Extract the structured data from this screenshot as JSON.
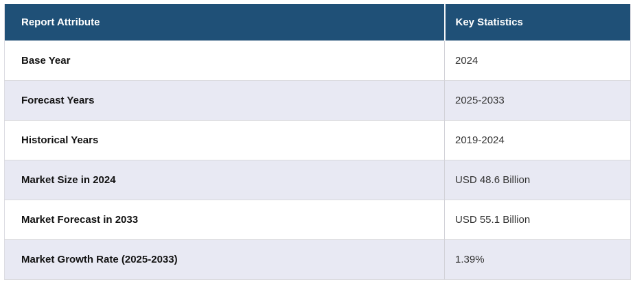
{
  "table": {
    "headers": {
      "attribute": "Report Attribute",
      "statistics": "Key Statistics"
    },
    "rows": [
      {
        "attribute": "Base Year",
        "value": "2024"
      },
      {
        "attribute": "Forecast Years",
        "value": "2025-2033"
      },
      {
        "attribute": "Historical Years",
        "value": "2019-2024"
      },
      {
        "attribute": "Market Size in 2024",
        "value": "USD 48.6 Billion"
      },
      {
        "attribute": "Market Forecast in 2033",
        "value": "USD 55.1 Billion"
      },
      {
        "attribute": "Market Growth Rate (2025-2033)",
        "value": "1.39%"
      }
    ]
  },
  "colors": {
    "header_background": "#1F5077",
    "header_text": "#FFFFFF",
    "alt_row_background": "#E8E9F3",
    "row_background": "#FFFFFF",
    "row_border": "#D8D8DC",
    "attribute_text": "#121212",
    "value_text": "#333333"
  },
  "chart_data": {
    "type": "table",
    "title": "Report Attribute / Key Statistics summary",
    "columns": [
      "Report Attribute",
      "Key Statistics"
    ],
    "rows": [
      [
        "Base Year",
        "2024"
      ],
      [
        "Forecast Years",
        "2025-2033"
      ],
      [
        "Historical Years",
        "2019-2024"
      ],
      [
        "Market Size in 2024",
        "USD 48.6 Billion"
      ],
      [
        "Market Forecast in 2033",
        "USD 55.1 Billion"
      ],
      [
        "Market Growth Rate (2025-2033)",
        "1.39%"
      ]
    ]
  }
}
